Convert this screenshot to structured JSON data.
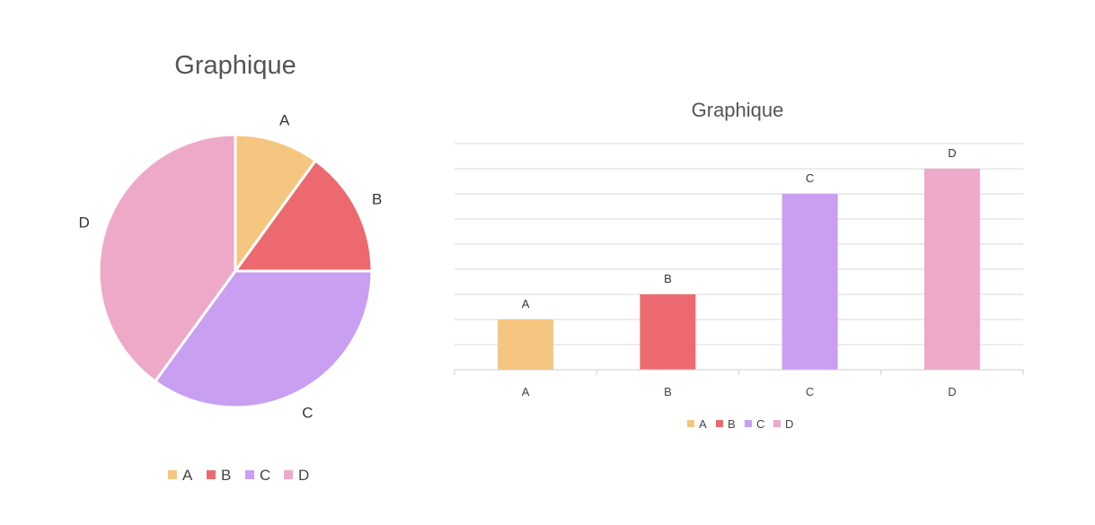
{
  "chart_data": [
    {
      "type": "pie",
      "title": "Graphique",
      "categories": [
        "A",
        "B",
        "C",
        "D"
      ],
      "values": [
        1,
        1.5,
        3.5,
        4
      ],
      "slice_labels": [
        "A",
        "B",
        "C",
        "D"
      ],
      "colors": [
        "#F5C67F",
        "#EC6A6F",
        "#C99FF1",
        "#EFA9C8"
      ],
      "legend": {
        "position": "bottom",
        "entries": [
          "A",
          "B",
          "C",
          "D"
        ]
      }
    },
    {
      "type": "bar",
      "title": "Graphique",
      "categories": [
        "A",
        "B",
        "C",
        "D"
      ],
      "values": [
        2,
        3,
        7,
        8
      ],
      "data_labels": [
        "A",
        "B",
        "C",
        "D"
      ],
      "colors": [
        "#F5C67F",
        "#EC6A6F",
        "#C99FF1",
        "#EFA9C8"
      ],
      "ylim": [
        0,
        9
      ],
      "grid": true,
      "y_tick_labels_shown": false,
      "legend": {
        "position": "bottom",
        "entries": [
          "A",
          "B",
          "C",
          "D"
        ]
      }
    }
  ]
}
